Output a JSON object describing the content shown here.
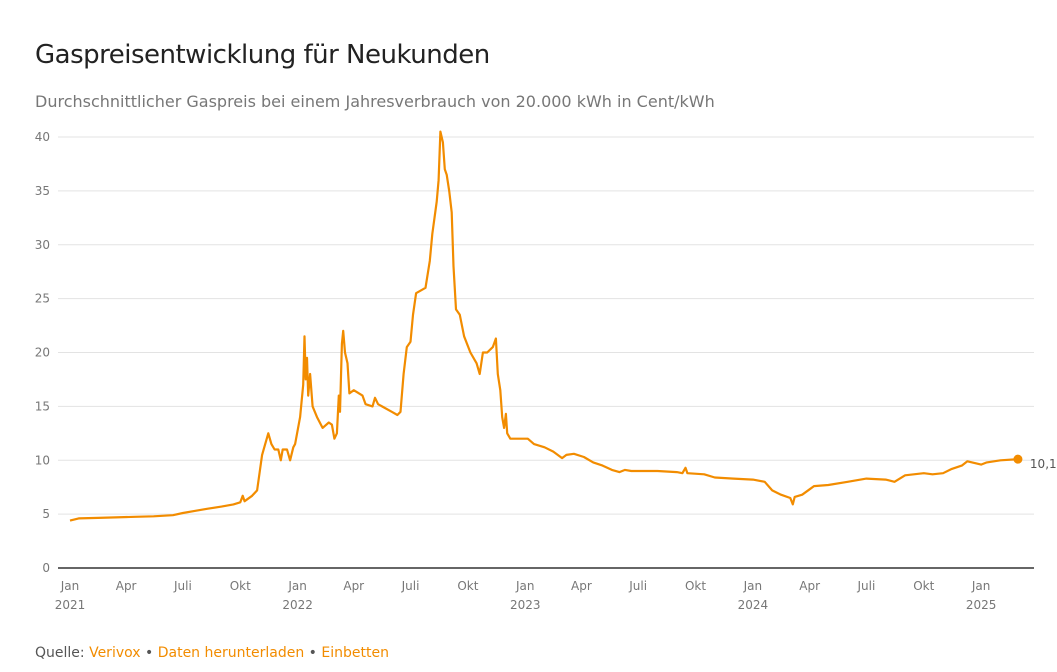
{
  "title": "Gaspreisentwicklung für Neukunden",
  "subtitle": "Durchschnittlicher Gaspreis bei einem Jahresverbrauch von 20.000 kWh in Cent/kWh",
  "footer": {
    "source_prefix": "Quelle:",
    "source_link": "Verivox",
    "separator": "•",
    "download_link": "Daten herunterladen",
    "embed_link": "Einbetten"
  },
  "colors": {
    "line": "#f28c00",
    "grid": "#e3e3e3",
    "axis": "#333333",
    "tick_text": "#777777"
  },
  "chart_data": {
    "type": "line",
    "title": "Gaspreisentwicklung für Neukunden",
    "subtitle": "Durchschnittlicher Gaspreis bei einem Jahresverbrauch von 20.000 kWh in Cent/kWh",
    "ylim": [
      0,
      40
    ],
    "yticks": [
      0,
      5,
      10,
      15,
      20,
      25,
      30,
      35,
      40
    ],
    "xlim": [
      "2021-01-01",
      "2025-04-15"
    ],
    "xticks": [
      {
        "date": "2021-01-01",
        "label": "Jan",
        "year": "2021"
      },
      {
        "date": "2021-04-01",
        "label": "Apr",
        "year": ""
      },
      {
        "date": "2021-07-01",
        "label": "Juli",
        "year": ""
      },
      {
        "date": "2021-10-01",
        "label": "Okt",
        "year": ""
      },
      {
        "date": "2022-01-01",
        "label": "Jan",
        "year": "2022"
      },
      {
        "date": "2022-04-01",
        "label": "Apr",
        "year": ""
      },
      {
        "date": "2022-07-01",
        "label": "Juli",
        "year": ""
      },
      {
        "date": "2022-10-01",
        "label": "Okt",
        "year": ""
      },
      {
        "date": "2023-01-01",
        "label": "Jan",
        "year": "2023"
      },
      {
        "date": "2023-04-01",
        "label": "Apr",
        "year": ""
      },
      {
        "date": "2023-07-01",
        "label": "Juli",
        "year": ""
      },
      {
        "date": "2023-10-01",
        "label": "Okt",
        "year": ""
      },
      {
        "date": "2024-01-01",
        "label": "Jan",
        "year": "2024"
      },
      {
        "date": "2024-04-01",
        "label": "Apr",
        "year": ""
      },
      {
        "date": "2024-07-01",
        "label": "Juli",
        "year": ""
      },
      {
        "date": "2024-10-01",
        "label": "Okt",
        "year": ""
      },
      {
        "date": "2025-01-01",
        "label": "Jan",
        "year": "2025"
      }
    ],
    "grid": true,
    "series": [
      {
        "points": [
          [
            "2021-01-01",
            4.4
          ],
          [
            "2021-01-15",
            4.6
          ],
          [
            "2021-02-15",
            4.65
          ],
          [
            "2021-03-15",
            4.7
          ],
          [
            "2021-04-15",
            4.75
          ],
          [
            "2021-05-15",
            4.8
          ],
          [
            "2021-06-15",
            4.9
          ],
          [
            "2021-07-01",
            5.1
          ],
          [
            "2021-07-20",
            5.3
          ],
          [
            "2021-08-10",
            5.5
          ],
          [
            "2021-09-01",
            5.7
          ],
          [
            "2021-09-20",
            5.9
          ],
          [
            "2021-10-01",
            6.1
          ],
          [
            "2021-10-05",
            6.7
          ],
          [
            "2021-10-08",
            6.2
          ],
          [
            "2021-10-20",
            6.7
          ],
          [
            "2021-10-28",
            7.2
          ],
          [
            "2021-11-05",
            10.5
          ],
          [
            "2021-11-10",
            11.5
          ],
          [
            "2021-11-15",
            12.5
          ],
          [
            "2021-11-20",
            11.5
          ],
          [
            "2021-11-25",
            11.0
          ],
          [
            "2021-12-01",
            11.0
          ],
          [
            "2021-12-05",
            10.0
          ],
          [
            "2021-12-08",
            11.0
          ],
          [
            "2021-12-15",
            11.0
          ],
          [
            "2021-12-20",
            10.0
          ],
          [
            "2021-12-25",
            11.2
          ],
          [
            "2021-12-28",
            11.5
          ],
          [
            "2022-01-05",
            14.0
          ],
          [
            "2022-01-10",
            17.0
          ],
          [
            "2022-01-12",
            21.5
          ],
          [
            "2022-01-14",
            17.5
          ],
          [
            "2022-01-16",
            19.5
          ],
          [
            "2022-01-18",
            16.0
          ],
          [
            "2022-01-21",
            18.0
          ],
          [
            "2022-01-25",
            15.0
          ],
          [
            "2022-02-01",
            14.0
          ],
          [
            "2022-02-10",
            13.0
          ],
          [
            "2022-02-20",
            13.5
          ],
          [
            "2022-02-25",
            13.3
          ],
          [
            "2022-03-01",
            12.0
          ],
          [
            "2022-03-05",
            12.5
          ],
          [
            "2022-03-08",
            16.0
          ],
          [
            "2022-03-10",
            14.5
          ],
          [
            "2022-03-13",
            20.8
          ],
          [
            "2022-03-15",
            22.0
          ],
          [
            "2022-03-18",
            20.0
          ],
          [
            "2022-03-22",
            19.0
          ],
          [
            "2022-03-25",
            16.2
          ],
          [
            "2022-04-01",
            16.5
          ],
          [
            "2022-04-15",
            16.0
          ],
          [
            "2022-04-20",
            15.2
          ],
          [
            "2022-05-01",
            15.0
          ],
          [
            "2022-05-05",
            15.8
          ],
          [
            "2022-05-10",
            15.2
          ],
          [
            "2022-06-01",
            14.5
          ],
          [
            "2022-06-10",
            14.2
          ],
          [
            "2022-06-15",
            14.5
          ],
          [
            "2022-06-20",
            18.0
          ],
          [
            "2022-06-25",
            20.5
          ],
          [
            "2022-07-01",
            21.0
          ],
          [
            "2022-07-05",
            23.5
          ],
          [
            "2022-07-10",
            25.5
          ],
          [
            "2022-07-25",
            26.0
          ],
          [
            "2022-08-01",
            28.5
          ],
          [
            "2022-08-05",
            31.0
          ],
          [
            "2022-08-12",
            34.0
          ],
          [
            "2022-08-15",
            36.0
          ],
          [
            "2022-08-18",
            40.5
          ],
          [
            "2022-08-22",
            39.5
          ],
          [
            "2022-08-25",
            37.0
          ],
          [
            "2022-08-28",
            36.5
          ],
          [
            "2022-09-01",
            35.0
          ],
          [
            "2022-09-05",
            33.0
          ],
          [
            "2022-09-08",
            28.0
          ],
          [
            "2022-09-12",
            24.0
          ],
          [
            "2022-09-18",
            23.5
          ],
          [
            "2022-09-25",
            21.5
          ],
          [
            "2022-10-05",
            20.0
          ],
          [
            "2022-10-15",
            19.0
          ],
          [
            "2022-10-20",
            18.0
          ],
          [
            "2022-10-25",
            20.0
          ],
          [
            "2022-11-01",
            20.0
          ],
          [
            "2022-11-10",
            20.5
          ],
          [
            "2022-11-15",
            21.3
          ],
          [
            "2022-11-18",
            18.0
          ],
          [
            "2022-11-22",
            16.5
          ],
          [
            "2022-11-25",
            14.0
          ],
          [
            "2022-11-28",
            13.0
          ],
          [
            "2022-12-01",
            14.3
          ],
          [
            "2022-12-03",
            12.5
          ],
          [
            "2022-12-08",
            12.0
          ],
          [
            "2022-12-20",
            12.0
          ],
          [
            "2023-01-05",
            12.0
          ],
          [
            "2023-01-15",
            11.5
          ],
          [
            "2023-02-01",
            11.2
          ],
          [
            "2023-02-15",
            10.8
          ],
          [
            "2023-03-01",
            10.2
          ],
          [
            "2023-03-08",
            10.5
          ],
          [
            "2023-03-20",
            10.6
          ],
          [
            "2023-04-05",
            10.3
          ],
          [
            "2023-04-20",
            9.8
          ],
          [
            "2023-05-05",
            9.5
          ],
          [
            "2023-05-20",
            9.1
          ],
          [
            "2023-06-01",
            8.9
          ],
          [
            "2023-06-10",
            9.1
          ],
          [
            "2023-06-20",
            9.0
          ],
          [
            "2023-07-01",
            9.0
          ],
          [
            "2023-08-01",
            9.0
          ],
          [
            "2023-09-01",
            8.9
          ],
          [
            "2023-09-10",
            8.8
          ],
          [
            "2023-09-15",
            9.3
          ],
          [
            "2023-09-18",
            8.8
          ],
          [
            "2023-10-15",
            8.7
          ],
          [
            "2023-11-01",
            8.4
          ],
          [
            "2023-12-01",
            8.3
          ],
          [
            "2024-01-01",
            8.2
          ],
          [
            "2024-01-20",
            8.0
          ],
          [
            "2024-02-01",
            7.2
          ],
          [
            "2024-02-15",
            6.8
          ],
          [
            "2024-03-01",
            6.5
          ],
          [
            "2024-03-05",
            5.9
          ],
          [
            "2024-03-08",
            6.6
          ],
          [
            "2024-03-20",
            6.8
          ],
          [
            "2024-04-01",
            7.3
          ],
          [
            "2024-04-08",
            7.6
          ],
          [
            "2024-05-01",
            7.7
          ],
          [
            "2024-06-01",
            8.0
          ],
          [
            "2024-07-01",
            8.3
          ],
          [
            "2024-08-01",
            8.2
          ],
          [
            "2024-08-15",
            8.0
          ],
          [
            "2024-09-01",
            8.6
          ],
          [
            "2024-10-01",
            8.8
          ],
          [
            "2024-10-15",
            8.7
          ],
          [
            "2024-11-01",
            8.8
          ],
          [
            "2024-11-15",
            9.2
          ],
          [
            "2024-12-01",
            9.5
          ],
          [
            "2024-12-10",
            9.9
          ],
          [
            "2025-01-01",
            9.6
          ],
          [
            "2025-01-10",
            9.8
          ],
          [
            "2025-02-01",
            10.0
          ],
          [
            "2025-03-01",
            10.1
          ]
        ]
      }
    ],
    "end_label": "10,1"
  }
}
